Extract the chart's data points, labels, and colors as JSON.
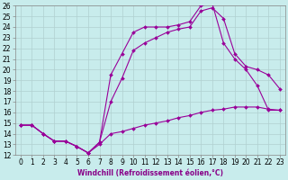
{
  "xlabel": "Windchill (Refroidissement éolien,°C)",
  "background_color": "#c8ecec",
  "grid_color": "#b0d0d0",
  "line_color": "#990099",
  "xlim": [
    -0.5,
    23.5
  ],
  "ylim": [
    12,
    26
  ],
  "xticks": [
    0,
    1,
    2,
    3,
    4,
    5,
    6,
    7,
    8,
    9,
    10,
    11,
    12,
    13,
    14,
    15,
    16,
    17,
    18,
    19,
    20,
    21,
    22,
    23
  ],
  "yticks": [
    12,
    13,
    14,
    15,
    16,
    17,
    18,
    19,
    20,
    21,
    22,
    23,
    24,
    25,
    26
  ],
  "line1_x": [
    0,
    1,
    2,
    3,
    4,
    5,
    6,
    7,
    8,
    9,
    10,
    11,
    12,
    13,
    14,
    15,
    16,
    17,
    18,
    19,
    20,
    21,
    22,
    23
  ],
  "line1_y": [
    14.8,
    14.8,
    14.0,
    13.3,
    13.3,
    12.8,
    12.2,
    13.2,
    19.5,
    21.5,
    23.5,
    24.0,
    24.0,
    24.0,
    24.2,
    24.5,
    26.0,
    26.2,
    22.5,
    21.0,
    20.0,
    18.5,
    16.2,
    16.2
  ],
  "line2_x": [
    0,
    1,
    2,
    3,
    4,
    5,
    6,
    7,
    8,
    9,
    10,
    11,
    12,
    13,
    14,
    15,
    16,
    17,
    18,
    19,
    20,
    21,
    22,
    23
  ],
  "line2_y": [
    14.8,
    14.8,
    14.0,
    13.3,
    13.3,
    12.8,
    12.2,
    13.0,
    14.0,
    14.2,
    14.5,
    14.8,
    15.0,
    15.2,
    15.5,
    15.7,
    16.0,
    16.2,
    16.3,
    16.5,
    16.5,
    16.5,
    16.3,
    16.2
  ],
  "line3_x": [
    0,
    1,
    2,
    3,
    4,
    5,
    6,
    7,
    8,
    9,
    10,
    11,
    12,
    13,
    14,
    15,
    16,
    17,
    18,
    19,
    20,
    21,
    22,
    23
  ],
  "line3_y": [
    14.8,
    14.8,
    14.0,
    13.3,
    13.3,
    12.8,
    12.2,
    13.2,
    17.0,
    19.2,
    21.8,
    22.5,
    23.0,
    23.5,
    23.8,
    24.0,
    25.5,
    25.8,
    24.8,
    21.5,
    20.3,
    20.0,
    19.5,
    18.2
  ],
  "marker_size": 2.0,
  "line_width": 0.8,
  "tick_fontsize": 5.5,
  "xlabel_fontsize": 5.5
}
